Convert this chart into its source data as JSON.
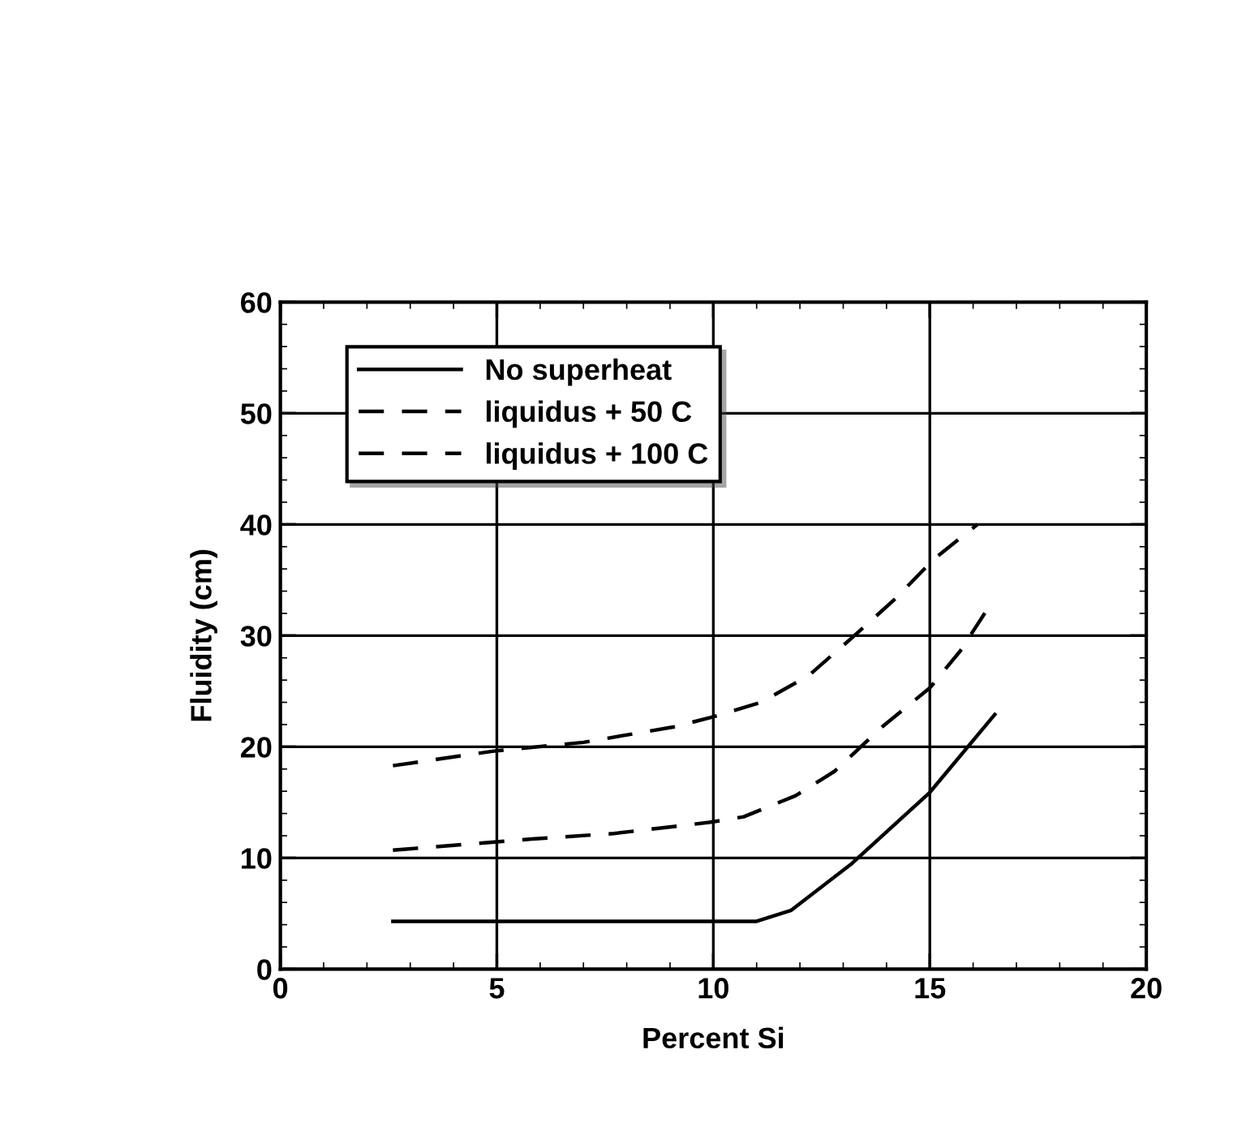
{
  "chart_data": {
    "type": "line",
    "xlabel": "Percent Si",
    "ylabel": "Fluidity (cm)",
    "xlim": [
      0,
      20
    ],
    "ylim": [
      0,
      60
    ],
    "xticks": [
      0,
      5,
      10,
      15,
      20
    ],
    "yticks": [
      0,
      10,
      20,
      30,
      40,
      50,
      60
    ],
    "grid": true,
    "legend": "top left",
    "marker": "none",
    "series": [
      {
        "name": "No superheat",
        "color": "#000000",
        "line_style": "solid",
        "x": [
          2.6,
          11.0,
          11.8,
          13.2,
          15.0,
          16.5
        ],
        "values": [
          4.3,
          4.3,
          5.3,
          9.5,
          15.9,
          22.9
        ]
      },
      {
        "name": "liquidus + 50 C",
        "color": "#000000",
        "line_style": "dashed",
        "x": [
          2.6,
          5.8,
          7.7,
          9.9,
          10.7,
          11.9,
          12.8,
          13.9,
          15.0,
          15.7,
          16.3
        ],
        "values": [
          10.7,
          11.7,
          12.2,
          13.2,
          13.7,
          15.6,
          17.8,
          21.8,
          25.3,
          28.6,
          32.2
        ]
      },
      {
        "name": "liquidus + 100 C",
        "color": "#000000",
        "line_style": "dashed",
        "x": [
          2.6,
          4.9,
          7.0,
          9.1,
          10.0,
          11.1,
          12.2,
          13.2,
          14.2,
          15.1,
          16.1
        ],
        "values": [
          18.3,
          19.6,
          20.4,
          21.8,
          22.7,
          24.0,
          26.4,
          29.8,
          33.3,
          36.9,
          40.0
        ]
      }
    ]
  }
}
